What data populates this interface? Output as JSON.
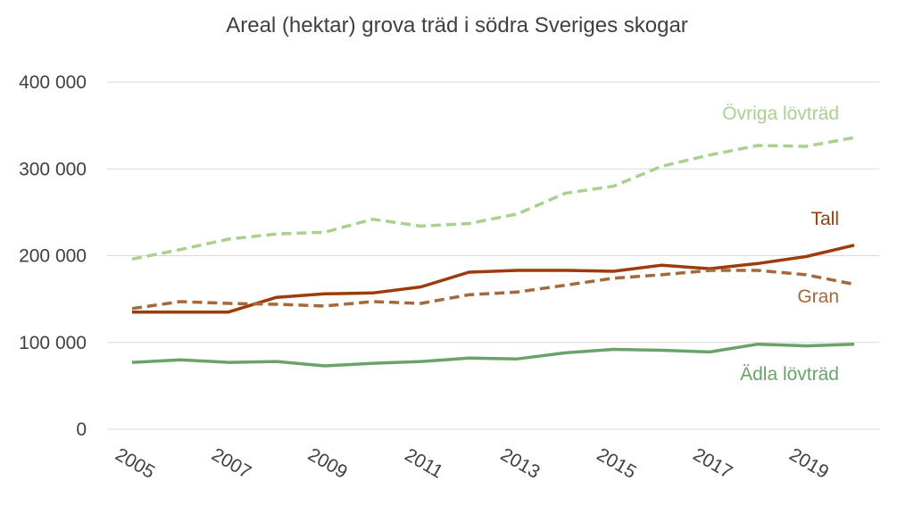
{
  "chart_data": {
    "type": "line",
    "title": "Areal (hektar) grova träd i södra Sveriges skogar",
    "xlabel": "",
    "ylabel": "",
    "ylim": [
      0,
      400000
    ],
    "yticks": [
      0,
      100000,
      200000,
      300000,
      400000
    ],
    "ytick_labels": [
      "0",
      "100 000",
      "200 000",
      "300 000",
      "400 000"
    ],
    "xtick_labels": [
      "2005",
      "2007",
      "2009",
      "2011",
      "2013",
      "2015",
      "2017",
      "2019"
    ],
    "grid": true,
    "legend": "inline labels at line ends",
    "x": [
      2005,
      2006,
      2007,
      2008,
      2009,
      2010,
      2011,
      2012,
      2013,
      2014,
      2015,
      2016,
      2017,
      2018,
      2019,
      2020
    ],
    "series": [
      {
        "name": "Övriga lövträd",
        "color": "#a9d18e",
        "style": "dashed",
        "values": [
          196000,
          207000,
          219000,
          225000,
          227000,
          242000,
          234000,
          237000,
          248000,
          272000,
          280000,
          303000,
          316000,
          327000,
          326000,
          336000
        ]
      },
      {
        "name": "Tall",
        "color": "#9e3b0a",
        "style": "solid",
        "values": [
          135000,
          135000,
          135000,
          152000,
          156000,
          157000,
          164000,
          181000,
          183000,
          183000,
          182000,
          189000,
          185000,
          191000,
          199000,
          212000
        ]
      },
      {
        "name": "Gran",
        "color": "#a5683a",
        "style": "dashed",
        "values": [
          139000,
          147000,
          145000,
          144000,
          142000,
          147000,
          145000,
          155000,
          158000,
          166000,
          174000,
          178000,
          183000,
          183000,
          178000,
          167000
        ]
      },
      {
        "name": "Ädla lövträd",
        "color": "#6aa36a",
        "style": "solid",
        "values": [
          77000,
          80000,
          77000,
          78000,
          73000,
          76000,
          78000,
          82000,
          81000,
          88000,
          92000,
          91000,
          89000,
          98000,
          96000,
          98000
        ]
      }
    ]
  }
}
